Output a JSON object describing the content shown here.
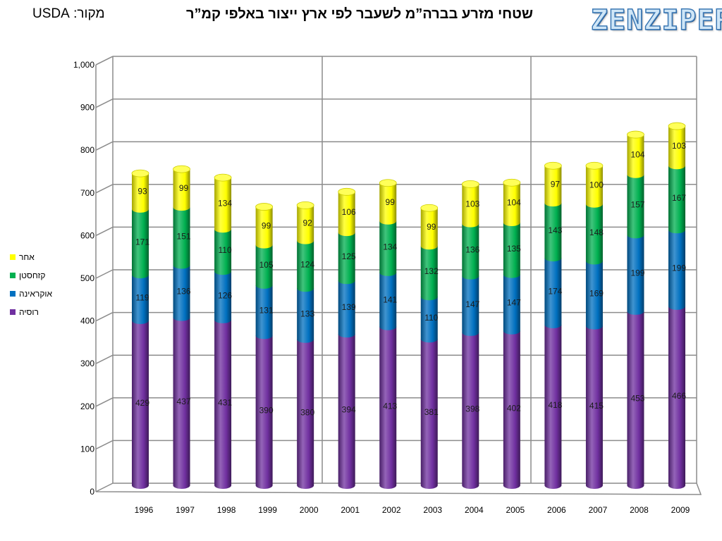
{
  "header": {
    "source": "מקור: USDA",
    "title": "שטחי מזרע בברה”מ לשעבר לפי ארץ ייצור באלפי קמ”ר",
    "logo": "ZENZIPER"
  },
  "chart_data": {
    "type": "bar",
    "stacked": true,
    "style": "3d-cylinder",
    "title": "שטחי מזרע בברה”מ לשעבר לפי ארץ ייצור באלפי קמ”ר",
    "xlabel": "",
    "ylabel": "",
    "categories": [
      "1996",
      "1997",
      "1998",
      "1999",
      "2000",
      "2001",
      "2002",
      "2003",
      "2004",
      "2005",
      "2006",
      "2007",
      "2008",
      "2009"
    ],
    "ylim": [
      0,
      1000
    ],
    "yticks": [
      0,
      100,
      200,
      300,
      400,
      500,
      600,
      700,
      800,
      900,
      1000
    ],
    "ytick_labels": [
      "0",
      "100",
      "200",
      "300",
      "400",
      "500",
      "600",
      "700",
      "800",
      "900",
      "1,000"
    ],
    "grid": true,
    "legend_position": "left",
    "series": [
      {
        "name": "רוסיה",
        "color": "#7030a0",
        "values": [
          429,
          437,
          431,
          390,
          380,
          394,
          413,
          381,
          398,
          402,
          418,
          415,
          453,
          466
        ]
      },
      {
        "name": "אוקראינה",
        "color": "#0070c0",
        "values": [
          119,
          136,
          126,
          131,
          133,
          139,
          141,
          110,
          147,
          147,
          174,
          169,
          199,
          199
        ]
      },
      {
        "name": "קזחסטן",
        "color": "#00b050",
        "values": [
          171,
          151,
          110,
          105,
          124,
          125,
          134,
          132,
          136,
          135,
          143,
          148,
          157,
          167
        ]
      },
      {
        "name": "אחר",
        "color": "#ffff00",
        "values": [
          93,
          99,
          134,
          99,
          92,
          106,
          99,
          99,
          103,
          104,
          97,
          100,
          104,
          103
        ]
      }
    ]
  },
  "legend": {
    "items": [
      {
        "label": "אחר",
        "color": "#ffff00"
      },
      {
        "label": "קזחסטן",
        "color": "#00b050"
      },
      {
        "label": "אוקראינה",
        "color": "#0070c0"
      },
      {
        "label": "רוסיה",
        "color": "#7030a0"
      }
    ]
  }
}
